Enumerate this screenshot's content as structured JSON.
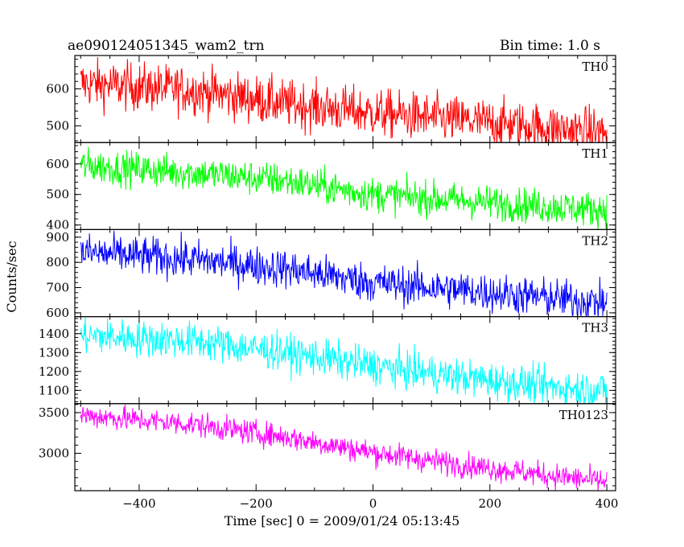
{
  "chart_data": {
    "type": "line",
    "title_left": "ae090124051345_wam2_trn",
    "title_right": "Bin time: 1.0 s",
    "xlabel": "Time [sec] 0 = 2009/01/24 05:13:45",
    "ylabel": "Counts/sec",
    "xlim": [
      -510,
      415
    ],
    "x_ticks": [
      -400,
      -200,
      0,
      200,
      400
    ],
    "x_tick_labels": [
      "−400",
      "−200",
      "0",
      "200",
      "400"
    ],
    "bin_time_sec": 1.0,
    "x_range": [
      -500,
      400
    ],
    "panels": [
      {
        "name": "TH0",
        "color": "#ff0000",
        "ylim": [
          455,
          690
        ],
        "y_ticks": [
          500,
          600
        ],
        "y_tick_labels": [
          "500",
          "600"
        ],
        "trend": [
          [
            -500,
            615
          ],
          [
            -300,
            595
          ],
          [
            -150,
            560
          ],
          [
            0,
            535
          ],
          [
            150,
            515
          ],
          [
            300,
            495
          ],
          [
            400,
            482
          ]
        ],
        "noise": 32
      },
      {
        "name": "TH1",
        "color": "#00ff00",
        "ylim": [
          385,
          670
        ],
        "y_ticks": [
          400,
          500,
          600
        ],
        "y_tick_labels": [
          "400",
          "500",
          "600"
        ],
        "trend": [
          [
            -500,
            595
          ],
          [
            -300,
            570
          ],
          [
            -150,
            545
          ],
          [
            0,
            500
          ],
          [
            150,
            480
          ],
          [
            300,
            460
          ],
          [
            400,
            450
          ]
        ],
        "noise": 28
      },
      {
        "name": "TH2",
        "color": "#0000ff",
        "ylim": [
          585,
          930
        ],
        "y_ticks": [
          600,
          700,
          800,
          900
        ],
        "y_tick_labels": [
          "600",
          "700",
          "800",
          "900"
        ],
        "trend": [
          [
            -500,
            840
          ],
          [
            -300,
            810
          ],
          [
            -150,
            775
          ],
          [
            0,
            720
          ],
          [
            150,
            690
          ],
          [
            300,
            660
          ],
          [
            400,
            640
          ]
        ],
        "noise": 38
      },
      {
        "name": "TH3",
        "color": "#00ffff",
        "ylim": [
          1030,
          1490
        ],
        "y_ticks": [
          1100,
          1200,
          1300,
          1400
        ],
        "y_tick_labels": [
          "1100",
          "1200",
          "1300",
          "1400"
        ],
        "trend": [
          [
            -500,
            1390
          ],
          [
            -300,
            1360
          ],
          [
            -150,
            1300
          ],
          [
            0,
            1230
          ],
          [
            150,
            1170
          ],
          [
            300,
            1120
          ],
          [
            400,
            1100
          ]
        ],
        "noise": 48
      },
      {
        "name": "TH0123",
        "color": "#ff00ff",
        "ylim": [
          2540,
          3610
        ],
        "y_ticks": [
          3000,
          3500
        ],
        "y_tick_labels": [
          "3000",
          "3500"
        ],
        "trend": [
          [
            -500,
            3470
          ],
          [
            -300,
            3350
          ],
          [
            -150,
            3200
          ],
          [
            0,
            3010
          ],
          [
            150,
            2860
          ],
          [
            300,
            2730
          ],
          [
            400,
            2650
          ]
        ],
        "noise": 75
      }
    ]
  }
}
